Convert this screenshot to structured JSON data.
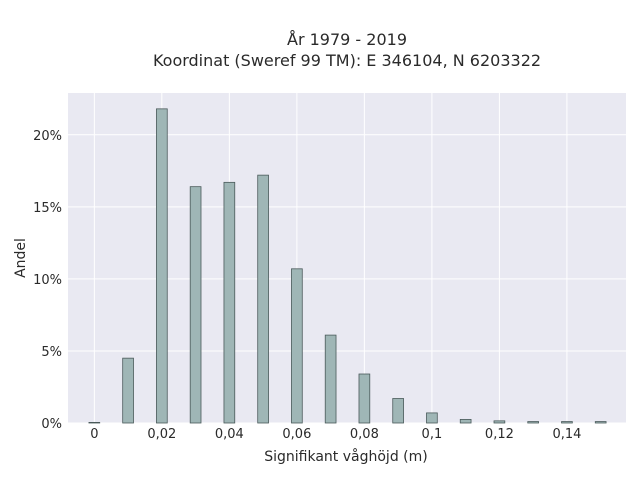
{
  "chart_data": {
    "type": "bar",
    "title": "År 1979 - 2019",
    "subtitle": "Koordinat (Sweref 99 TM): E 346104, N 6203322",
    "xlabel": "Signifikant våghöjd (m)",
    "ylabel": "Andel",
    "x": [
      0,
      0.01,
      0.02,
      0.03,
      0.04,
      0.05,
      0.06,
      0.07,
      0.08,
      0.09,
      0.1,
      0.11,
      0.12,
      0.13,
      0.14,
      0.15
    ],
    "values": [
      0.02,
      4.5,
      21.8,
      16.4,
      16.7,
      17.2,
      10.7,
      6.1,
      3.4,
      1.7,
      0.7,
      0.25,
      0.15,
      0.1,
      0.1,
      0.1
    ],
    "x_ticks": [
      {
        "value": 0,
        "label": "0"
      },
      {
        "value": 0.02,
        "label": "0,02"
      },
      {
        "value": 0.04,
        "label": "0,04"
      },
      {
        "value": 0.06,
        "label": "0,06"
      },
      {
        "value": 0.08,
        "label": "0,08"
      },
      {
        "value": 0.1,
        "label": "0,1"
      },
      {
        "value": 0.12,
        "label": "0,12"
      },
      {
        "value": 0.14,
        "label": "0,14"
      }
    ],
    "y_ticks": [
      {
        "value": 0,
        "label": "0%"
      },
      {
        "value": 5,
        "label": "5%"
      },
      {
        "value": 10,
        "label": "10%"
      },
      {
        "value": 15,
        "label": "15%"
      },
      {
        "value": 20,
        "label": "20%"
      }
    ],
    "xlim": [
      -0.0078,
      0.1575
    ],
    "ylim": [
      0,
      22.9
    ],
    "grid": true,
    "colors": {
      "plot_bg": "#e9e9f2",
      "grid": "#ffffff",
      "bar_fill": "#9fb6b6",
      "bar_stroke": "#4a5a5a"
    }
  }
}
